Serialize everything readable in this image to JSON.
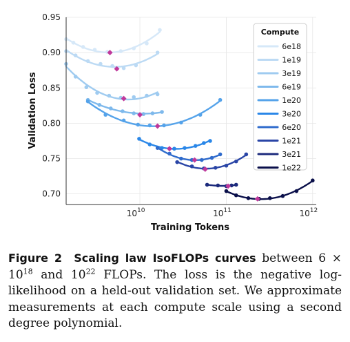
{
  "chart_data": {
    "type": "line",
    "xlabel": "Training Tokens",
    "ylabel": "Validation Loss",
    "xscale": "log",
    "xlim": [
      1400000000.0,
      1100000000000.0
    ],
    "ylim": [
      0.685,
      0.95
    ],
    "x_ticks": [
      {
        "value": 10000000000.0,
        "base": "10",
        "exp": "10"
      },
      {
        "value": 100000000000.0,
        "base": "10",
        "exp": "11"
      },
      {
        "value": 1000000000000.0,
        "base": "10",
        "exp": "12"
      }
    ],
    "y_ticks": [
      "0.70",
      "0.75",
      "0.80",
      "0.85",
      "0.90",
      "0.95"
    ],
    "grid": true,
    "legend": {
      "title": "Compute",
      "placement": "top-right"
    },
    "minimum_marker_color": "#c0389b",
    "series": [
      {
        "name": "6e18",
        "color": "#d6e8f8",
        "x": [
          1400000000.0,
          1700000000.0,
          2200000000.0,
          3000000000.0,
          4200000000.0,
          6000000000.0,
          8500000000.0,
          12000000000.0,
          17000000000.0
        ],
        "y": [
          0.919,
          0.914,
          0.908,
          0.904,
          0.901,
          0.902,
          0.906,
          0.913,
          0.932
        ],
        "min": [
          4500000000.0,
          0.9
        ]
      },
      {
        "name": "1e19",
        "color": "#bcdaf4",
        "x": [
          1400000000.0,
          1800000000.0,
          2500000000.0,
          3500000000.0,
          4800000000.0,
          6500000000.0,
          9000000000.0,
          16000000000.0
        ],
        "y": [
          0.902,
          0.896,
          0.888,
          0.884,
          0.881,
          0.878,
          0.882,
          0.9
        ],
        "min": [
          5400000000.0,
          0.877
        ]
      },
      {
        "name": "3e19",
        "color": "#9fcbf0",
        "x": [
          1400000000.0,
          1800000000.0,
          2400000000.0,
          3200000000.0,
          4400000000.0,
          6000000000.0,
          8500000000.0,
          12000000000.0,
          16000000000.0
        ],
        "y": [
          0.884,
          0.866,
          0.851,
          0.843,
          0.839,
          0.836,
          0.837,
          0.839,
          0.841
        ],
        "min": [
          6500000000.0,
          0.835
        ]
      },
      {
        "name": "6e19",
        "color": "#7eb9ec",
        "x": [
          2500000000.0,
          3400000000.0,
          4600000000.0,
          6300000000.0,
          8500000000.0,
          11000000000.0,
          14000000000.0,
          18000000000.0
        ],
        "y": [
          0.833,
          0.826,
          0.821,
          0.817,
          0.814,
          0.813,
          0.814,
          0.816
        ],
        "min": [
          10000000000.0,
          0.812
        ]
      },
      {
        "name": "1e20",
        "color": "#55a3ea",
        "x": [
          2500000000.0,
          4000000000.0,
          6500000000.0,
          9500000000.0,
          13000000000.0,
          19000000000.0,
          30000000000.0,
          50000000000.0,
          85000000000.0
        ],
        "y": [
          0.831,
          0.812,
          0.804,
          0.798,
          0.797,
          0.797,
          0.801,
          0.812,
          0.833
        ],
        "min": [
          16000000000.0,
          0.796
        ]
      },
      {
        "name": "3e20",
        "color": "#2a87e8",
        "x": [
          9800000000.0,
          13000000000.0,
          18000000000.0,
          25000000000.0,
          33000000000.0,
          44000000000.0,
          55000000000.0,
          65000000000.0
        ],
        "y": [
          0.778,
          0.77,
          0.765,
          0.764,
          0.765,
          0.768,
          0.772,
          0.775
        ],
        "min": [
          22000000000.0,
          0.764
        ]
      },
      {
        "name": "6e20",
        "color": "#2f6bcc",
        "x": [
          16000000000.0,
          22000000000.0,
          30000000000.0,
          40000000000.0,
          52000000000.0,
          68000000000.0,
          85000000000.0
        ],
        "y": [
          0.765,
          0.757,
          0.75,
          0.748,
          0.748,
          0.751,
          0.756
        ],
        "min": [
          43000000000.0,
          0.748
        ]
      },
      {
        "name": "1e21",
        "color": "#2a45a6",
        "x": [
          27000000000.0,
          40000000000.0,
          55000000000.0,
          75000000000.0,
          100000000000.0,
          130000000000.0,
          170000000000.0
        ],
        "y": [
          0.745,
          0.739,
          0.736,
          0.737,
          0.74,
          0.746,
          0.756
        ],
        "min": [
          57000000000.0,
          0.735
        ]
      },
      {
        "name": "3e21",
        "color": "#1c2a7c",
        "x": [
          60000000000.0,
          80000000000.0,
          100000000000.0,
          115000000000.0,
          130000000000.0
        ],
        "y": [
          0.713,
          0.712,
          0.711,
          0.712,
          0.713
        ],
        "min": [
          105000000000.0,
          0.711
        ]
      },
      {
        "name": "1e22",
        "color": "#0a0f4a",
        "x": [
          100000000000.0,
          130000000000.0,
          180000000000.0,
          240000000000.0,
          320000000000.0,
          450000000000.0,
          650000000000.0,
          1000000000000.0
        ],
        "y": [
          0.704,
          0.698,
          0.694,
          0.693,
          0.694,
          0.697,
          0.704,
          0.719
        ],
        "min": [
          230000000000.0,
          0.693
        ]
      }
    ]
  },
  "caption": {
    "label": "Figure 2",
    "title": "Scaling law IsoFLOPs curves",
    "between": "between 6 × 10",
    "exp1": "18",
    "and": "and 10",
    "exp2": "22",
    "rest": "FLOPs. The loss is the negative log-likelihood on a held-out validation set. We approximate measurements at each compute scale using a second degree polynomial."
  }
}
